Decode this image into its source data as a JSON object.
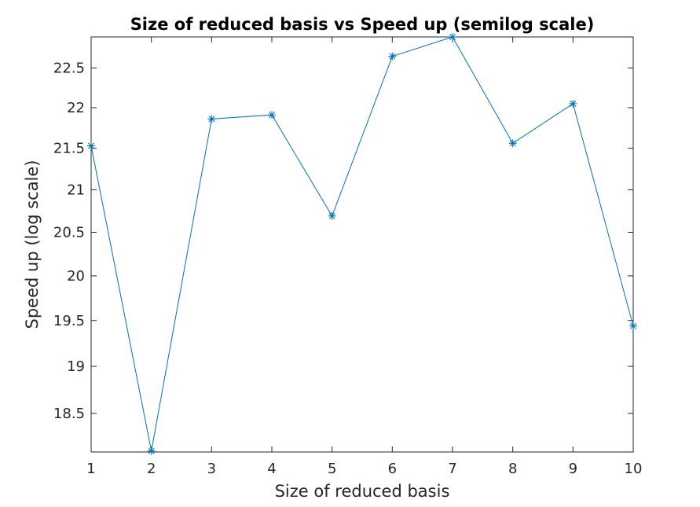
{
  "chart_data": {
    "type": "line",
    "title": "Size of reduced basis vs Speed up (semilog scale)",
    "xlabel": "Size of reduced basis",
    "ylabel": "Speed up (log scale)",
    "xlim": [
      1,
      10
    ],
    "ylim": [
      18.1,
      22.9
    ],
    "yscale": "log",
    "grid": false,
    "x_ticks": [
      "1",
      "2",
      "3",
      "4",
      "5",
      "6",
      "7",
      "8",
      "9",
      "10"
    ],
    "y_ticks": [
      "18.5",
      "19",
      "19.5",
      "20",
      "20.5",
      "21",
      "21.5",
      "22",
      "22.5"
    ],
    "marker": "asterisk",
    "series": [
      {
        "color": "#0072BD",
        "x": [
          1,
          2,
          3,
          4,
          5,
          6,
          7,
          8,
          9,
          10
        ],
        "y": [
          21.53,
          18.11,
          21.86,
          21.91,
          20.69,
          22.65,
          22.9,
          21.56,
          22.05,
          19.44
        ]
      }
    ]
  }
}
